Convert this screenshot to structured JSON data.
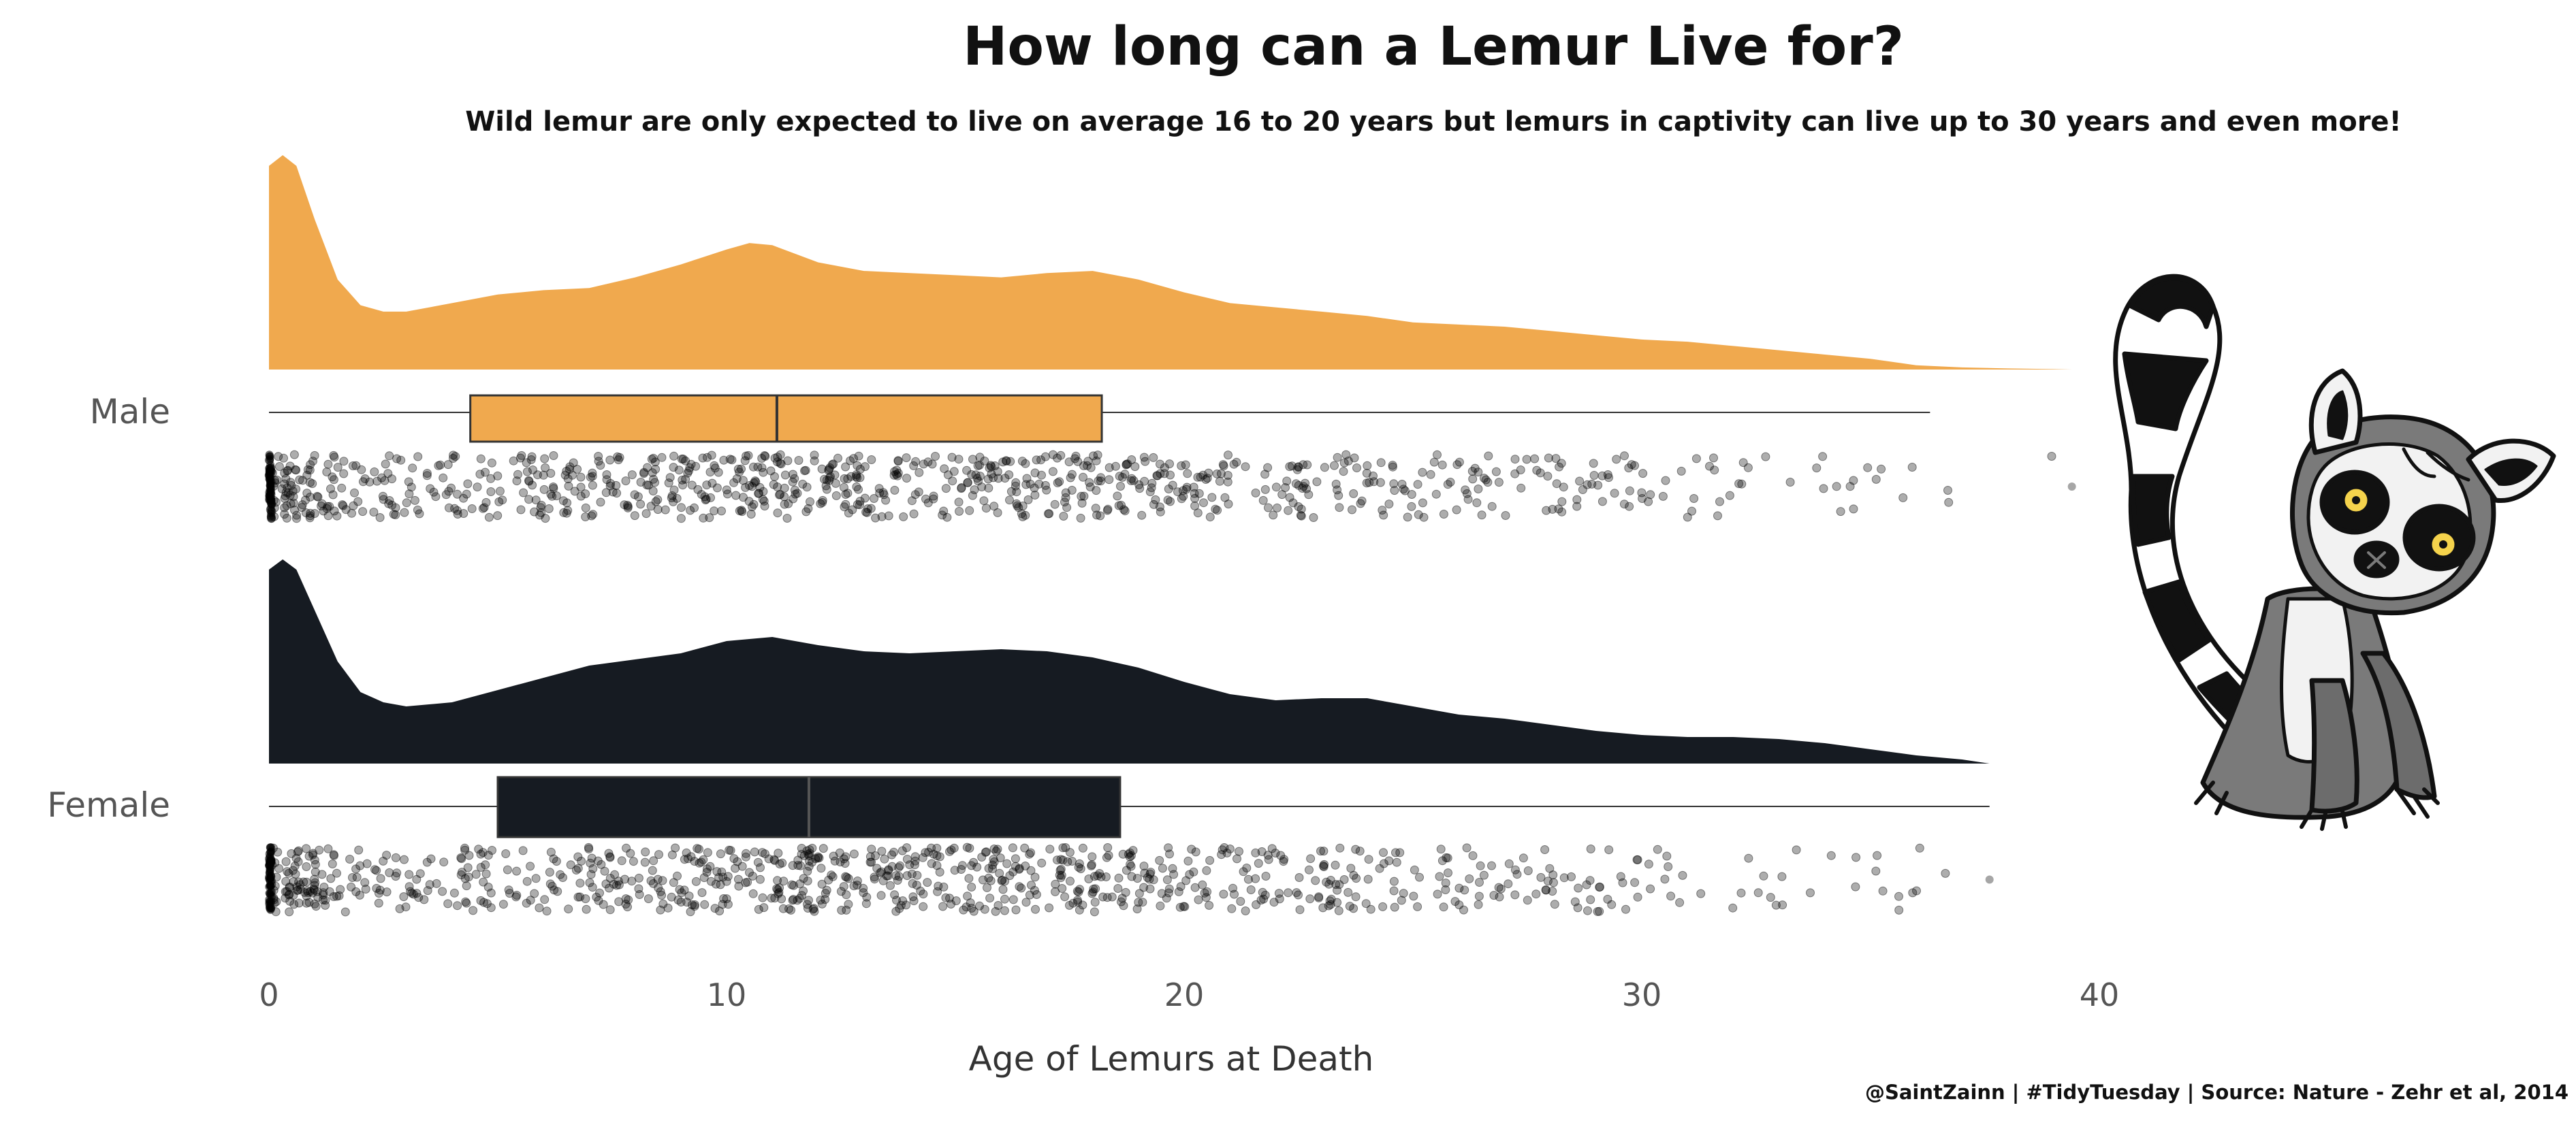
{
  "chart_data": {
    "type": "raincloud",
    "title": "How long can a Lemur Live for?",
    "subtitle": "Wild lemur are only expected to live on average 16 to 20 years but lemurs in captivity can live up to 30 years and even more!",
    "xlabel": "Age of Lemurs at Death",
    "ylabel": "",
    "xlim": [
      0,
      40
    ],
    "xticks": [
      "0",
      "10",
      "20",
      "30",
      "40"
    ],
    "categories": [
      "Male",
      "Female"
    ],
    "grid": false,
    "legend": "none",
    "caption": "@SaintZainn | #TidyTuesday | Source: Nature - Zehr et al, 2014",
    "series": [
      {
        "name": "Male",
        "color": "#F0A94E",
        "density": {
          "x": [
            0,
            0.3,
            0.6,
            1,
            1.5,
            2,
            2.5,
            3,
            4,
            5,
            6,
            7,
            8,
            9,
            10,
            10.5,
            11,
            12,
            13,
            14,
            15,
            16,
            17,
            18,
            19,
            20,
            21,
            22,
            23,
            24,
            25,
            26,
            27,
            28,
            29,
            30,
            31,
            32,
            33,
            34,
            35,
            36,
            37,
            38,
            39,
            39.4
          ],
          "y": [
            0.95,
            1.0,
            0.95,
            0.7,
            0.42,
            0.3,
            0.27,
            0.27,
            0.31,
            0.35,
            0.37,
            0.38,
            0.43,
            0.49,
            0.56,
            0.59,
            0.58,
            0.5,
            0.46,
            0.45,
            0.44,
            0.43,
            0.45,
            0.46,
            0.42,
            0.36,
            0.31,
            0.29,
            0.27,
            0.25,
            0.22,
            0.21,
            0.2,
            0.18,
            0.16,
            0.14,
            0.13,
            0.11,
            0.09,
            0.07,
            0.05,
            0.02,
            0.01,
            0.005,
            0.002,
            0
          ]
        },
        "box": {
          "min": 0,
          "q1": 4.4,
          "median": 11.1,
          "q3": 18.2,
          "max": 36.3
        },
        "point_x_range": [
          0,
          39.4
        ]
      },
      {
        "name": "Female",
        "color": "#161B22",
        "density": {
          "x": [
            0,
            0.3,
            0.6,
            1,
            1.5,
            2,
            2.5,
            3,
            4,
            5,
            6,
            7,
            8,
            9,
            10,
            11,
            12,
            13,
            14,
            15,
            16,
            17,
            18,
            19,
            20,
            21,
            22,
            23,
            24,
            25,
            26,
            27,
            28,
            29,
            30,
            31,
            32,
            33,
            34,
            35,
            36,
            37,
            37.6
          ],
          "y": [
            0.95,
            1.0,
            0.95,
            0.75,
            0.5,
            0.35,
            0.3,
            0.28,
            0.3,
            0.36,
            0.42,
            0.48,
            0.51,
            0.54,
            0.6,
            0.62,
            0.58,
            0.55,
            0.54,
            0.55,
            0.56,
            0.55,
            0.52,
            0.47,
            0.4,
            0.34,
            0.31,
            0.32,
            0.32,
            0.28,
            0.24,
            0.22,
            0.19,
            0.16,
            0.14,
            0.13,
            0.13,
            0.12,
            0.1,
            0.07,
            0.04,
            0.02,
            0
          ]
        },
        "box": {
          "min": 0,
          "q1": 5,
          "median": 11.8,
          "q3": 18.6,
          "max": 37.6
        },
        "point_x_range": [
          0,
          37.6
        ]
      }
    ]
  },
  "icons": [
    "lemur-illustration"
  ]
}
